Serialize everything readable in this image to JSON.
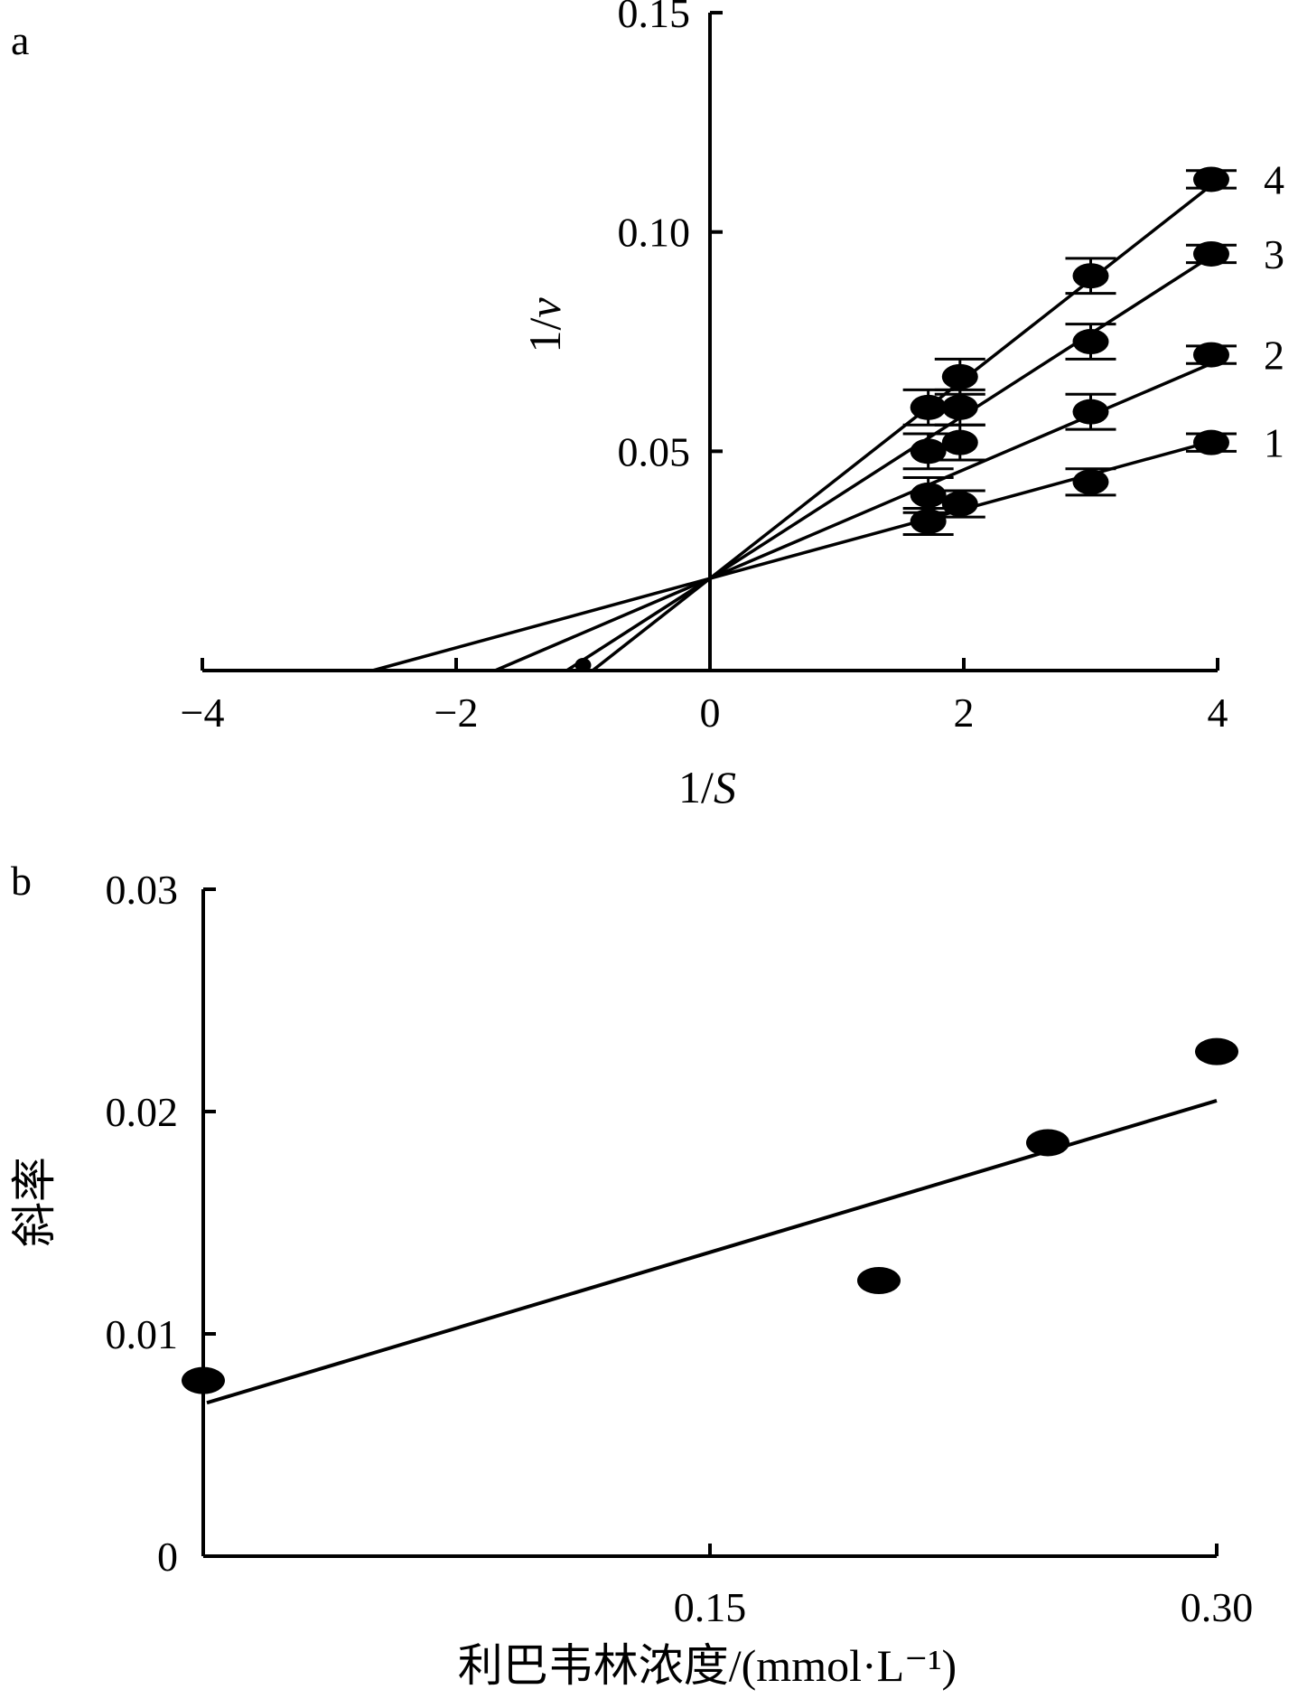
{
  "chart_data": [
    {
      "panel": "a",
      "type": "line",
      "xlabel": "1/S",
      "ylabel": "1/v",
      "xlim": [
        -4,
        4
      ],
      "ylim": [
        0,
        0.15
      ],
      "xticks": [
        -4,
        -2,
        0,
        2,
        4
      ],
      "xtick_labels": [
        "−4",
        "−2",
        "0",
        "2",
        "4"
      ],
      "yticks": [
        0.05,
        0.1,
        0.15
      ],
      "ytick_labels": [
        "0.05",
        "0.10",
        "0.15"
      ],
      "grid": false,
      "legend": "none",
      "x": [
        1.72,
        1.97,
        3.0,
        3.95
      ],
      "series": [
        {
          "name": "1",
          "values": [
            0.034,
            0.038,
            0.043,
            0.052
          ],
          "errors": [
            0.003,
            0.003,
            0.003,
            0.002
          ],
          "fit": {
            "intercept": 0.021,
            "slope": 0.0079
          }
        },
        {
          "name": "2",
          "values": [
            0.04,
            0.052,
            0.059,
            0.072
          ],
          "errors": [
            0.004,
            0.004,
            0.004,
            0.002
          ],
          "fit": {
            "intercept": 0.021,
            "slope": 0.0124
          }
        },
        {
          "name": "3",
          "values": [
            0.05,
            0.06,
            0.075,
            0.095
          ],
          "errors": [
            0.004,
            0.004,
            0.004,
            0.002
          ],
          "fit": {
            "intercept": 0.021,
            "slope": 0.0186
          }
        },
        {
          "name": "4",
          "values": [
            0.06,
            0.067,
            0.09,
            0.112
          ],
          "errors": [
            0.004,
            0.004,
            0.004,
            0.002
          ],
          "fit": {
            "intercept": 0.021,
            "slope": 0.0227
          }
        }
      ]
    },
    {
      "panel": "b",
      "type": "scatter",
      "xlabel": "利巴韦林浓度/(mmol·L⁻¹)",
      "ylabel": "斜率",
      "xlim": [
        0,
        0.3
      ],
      "ylim": [
        0,
        0.03
      ],
      "xticks": [
        0.15,
        0.3
      ],
      "xtick_labels": [
        "0.15",
        "0.30"
      ],
      "yticks": [
        0,
        0.01,
        0.02,
        0.03
      ],
      "ytick_labels": [
        "0",
        "0.01",
        "0.02",
        "0.03"
      ],
      "grid": false,
      "legend": "none",
      "x": [
        0,
        0.2,
        0.25,
        0.3
      ],
      "values": [
        0.0079,
        0.0124,
        0.0186,
        0.0227
      ],
      "trendline": {
        "intercept": 0.0069,
        "slope": 0.0453,
        "x_range": [
          0,
          0.3
        ]
      }
    }
  ]
}
